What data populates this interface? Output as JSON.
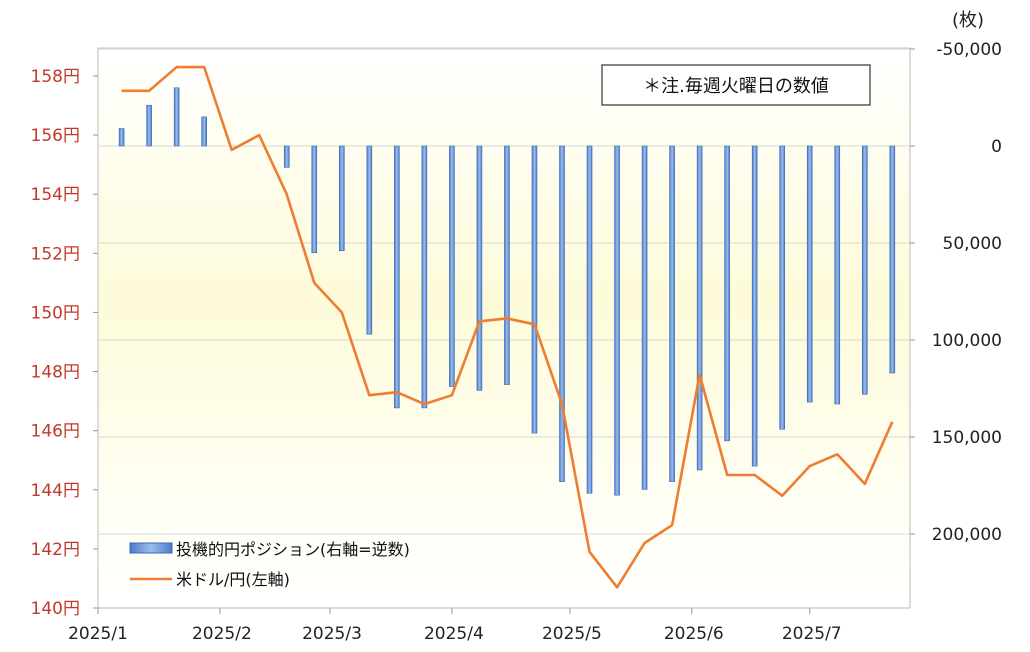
{
  "chart_data": {
    "type": "bar+line",
    "title": "",
    "note": "＊注.毎週火曜日の数値",
    "left_axis": {
      "ticks": [
        140,
        142,
        144,
        146,
        148,
        150,
        152,
        154,
        156,
        158
      ],
      "tick_labels": [
        "140円",
        "142円",
        "144円",
        "146円",
        "148円",
        "150円",
        "152円",
        "154円",
        "156円",
        "158円"
      ],
      "ylim": [
        140,
        158
      ],
      "color": "#c0392b"
    },
    "right_axis": {
      "unit_label": "(枚)",
      "ticks": [
        -50000,
        0,
        50000,
        100000,
        150000,
        200000
      ],
      "tick_labels": [
        "-50,000",
        "0",
        "50,000",
        "100,000",
        "150,000",
        "200,000"
      ],
      "inverted": true
    },
    "x_axis": {
      "tick_labels": [
        "2025/1",
        "2025/2",
        "2025/3",
        "2025/4",
        "2025/5",
        "2025/6",
        "2025/7"
      ]
    },
    "legend": {
      "placement": "bottom-left",
      "items": [
        {
          "label": "投機的円ポジション(右軸=逆数)",
          "kind": "bar",
          "color": "#5b8dd6"
        },
        {
          "label": "米ドル/円(左軸)",
          "kind": "line",
          "color": "#ed7d31"
        }
      ]
    },
    "dates": [
      "2025/1/7",
      "2025/1/14",
      "2025/1/21",
      "2025/1/28",
      "2025/2/4",
      "2025/2/11",
      "2025/2/18",
      "2025/2/25",
      "2025/3/4",
      "2025/3/11",
      "2025/3/18",
      "2025/3/25",
      "2025/4/1",
      "2025/4/8",
      "2025/4/15",
      "2025/4/22",
      "2025/4/29",
      "2025/5/6",
      "2025/5/13",
      "2025/5/20",
      "2025/5/27",
      "2025/6/3",
      "2025/6/10",
      "2025/6/17",
      "2025/6/24",
      "2025/7/1",
      "2025/7/8",
      "2025/7/15",
      "2025/7/22"
    ],
    "series": [
      {
        "name": "投機的円ポジション(右軸=逆数)",
        "type": "bar",
        "axis": "right",
        "values": [
          -9000,
          -21000,
          -30000,
          -15000,
          null,
          0,
          11000,
          55000,
          54000,
          97000,
          135000,
          135000,
          124000,
          126000,
          123000,
          148000,
          173000,
          179000,
          180000,
          177000,
          173000,
          167000,
          152000,
          165000,
          146000,
          132000,
          133000,
          128000,
          117000
        ]
      },
      {
        "name": "米ドル/円(左軸)",
        "type": "line",
        "axis": "left",
        "values": [
          157.5,
          157.5,
          158.3,
          158.3,
          155.5,
          156.0,
          154.0,
          151.0,
          150.0,
          147.2,
          147.3,
          146.9,
          147.2,
          149.7,
          149.8,
          149.6,
          146.9,
          141.9,
          140.7,
          142.2,
          142.8,
          147.9,
          144.5,
          144.5,
          143.8,
          144.8,
          145.2,
          144.2,
          146.3
        ]
      }
    ]
  }
}
